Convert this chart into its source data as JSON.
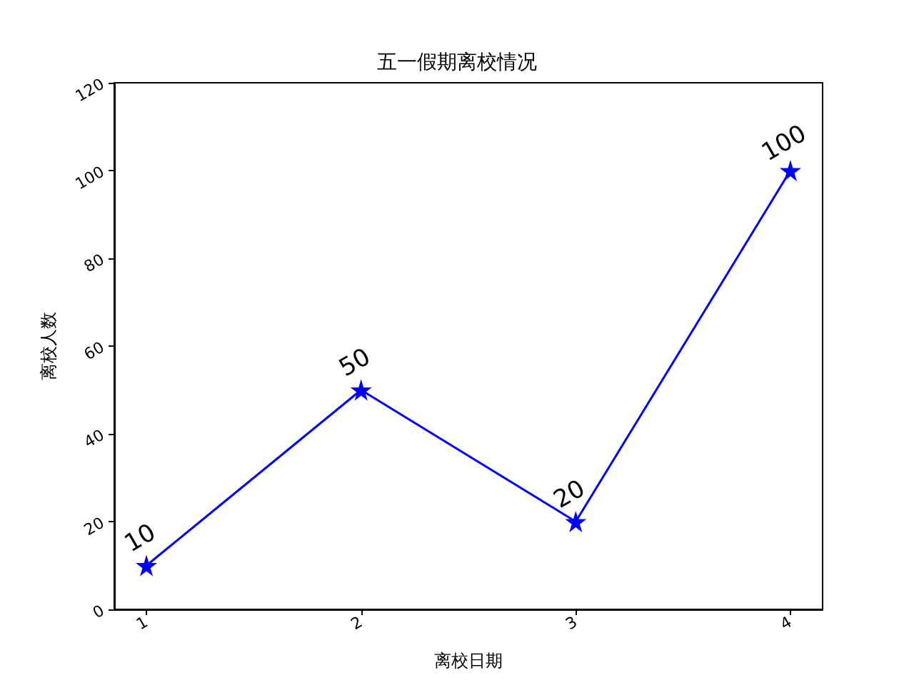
{
  "chart_data": {
    "type": "line",
    "title": "五一假期离校情况",
    "xlabel": "离校日期",
    "ylabel": "离校人数",
    "x": [
      1,
      2,
      3,
      4
    ],
    "series": [
      {
        "color": "#0000ff",
        "values": [
          10,
          50,
          20,
          100
        ]
      }
    ],
    "xlim": [
      0.85,
      4.15
    ],
    "xticks": [
      1,
      2,
      3,
      4
    ],
    "ylim": [
      0,
      120
    ],
    "yticks": [
      0,
      20,
      40,
      60,
      80,
      100,
      120
    ],
    "marker": "star",
    "line_style": "solid",
    "grid": false,
    "data_labels": true
  }
}
